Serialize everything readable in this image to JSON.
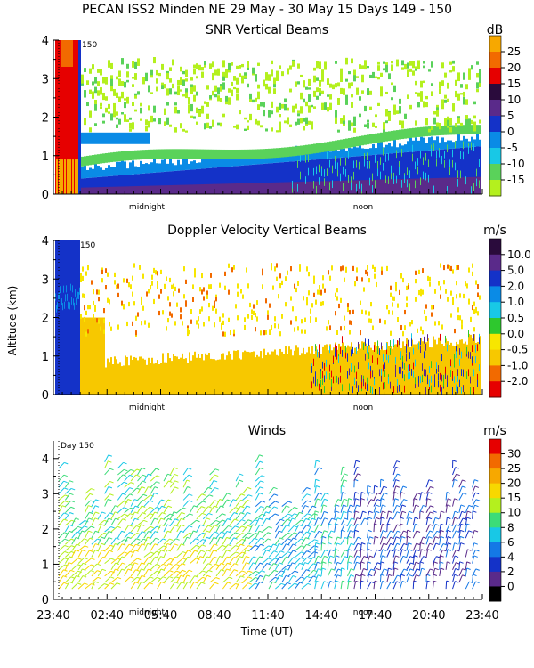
{
  "figure_title": "PECAN ISS2 Minden NE  29 May - 30 May 15 Days 149 - 150",
  "x_axis_label": "Time (UT)",
  "day_marker": "Day 150",
  "day_marker_short": "150",
  "chart_data": [
    {
      "type": "heatmap",
      "title": "SNR Vertical Beams",
      "ylabel": "",
      "ylim": [
        0,
        4
      ],
      "yticks": [
        "0",
        "1",
        "2",
        "3",
        "4"
      ],
      "colorbar_unit": "dB",
      "colorbar_labels": [
        "25",
        "20",
        "15",
        "10",
        "5",
        "0",
        "-5",
        "-10",
        "-15"
      ],
      "colors": [
        "#f7a800",
        "#f26a00",
        "#e60000",
        "#2a0b3c",
        "#5a2a8a",
        "#1432c8",
        "#0a8be6",
        "#18c8e6",
        "#5ad25a",
        "#b4f01e"
      ],
      "annotations": [
        "midnight",
        "noon"
      ]
    },
    {
      "type": "heatmap",
      "title": "Doppler Velocity Vertical Beams",
      "ylabel": "Altitude (km)",
      "ylim": [
        0,
        4
      ],
      "yticks": [
        "0",
        "1",
        "2",
        "3",
        "4"
      ],
      "colorbar_unit": "m/s",
      "colorbar_labels": [
        "10.0",
        "5.0",
        "2.0",
        "1.0",
        "0.5",
        "0.0",
        "-0.5",
        "-1.0",
        "-2.0"
      ],
      "colors": [
        "#2a0b3c",
        "#5a2a8a",
        "#1432c8",
        "#0a8be6",
        "#18c8e6",
        "#2ec82e",
        "#f7e600",
        "#f7c800",
        "#f26a00",
        "#e60000"
      ],
      "annotations": [
        "midnight",
        "noon"
      ]
    },
    {
      "type": "scatter",
      "title": "Winds",
      "ylabel": "",
      "ylim": [
        0,
        4.5
      ],
      "yticks": [
        "0",
        "1",
        "2",
        "3",
        "4"
      ],
      "colorbar_unit": "m/s",
      "colorbar_labels": [
        "30",
        "25",
        "20",
        "15",
        "10",
        "8",
        "6",
        "4",
        "2",
        "0"
      ],
      "colors": [
        "#e60000",
        "#f26a00",
        "#f7a800",
        "#f7d800",
        "#b4f01e",
        "#3cdc78",
        "#18c8e6",
        "#1478e6",
        "#1432c8",
        "#5a2a8a",
        "#000000"
      ],
      "x_ticks": [
        "23:40",
        "02:40",
        "05:40",
        "08:40",
        "11:40",
        "14:40",
        "17:40",
        "20:40",
        "23:40"
      ],
      "annotations": [
        "midnight",
        "noon"
      ]
    }
  ]
}
